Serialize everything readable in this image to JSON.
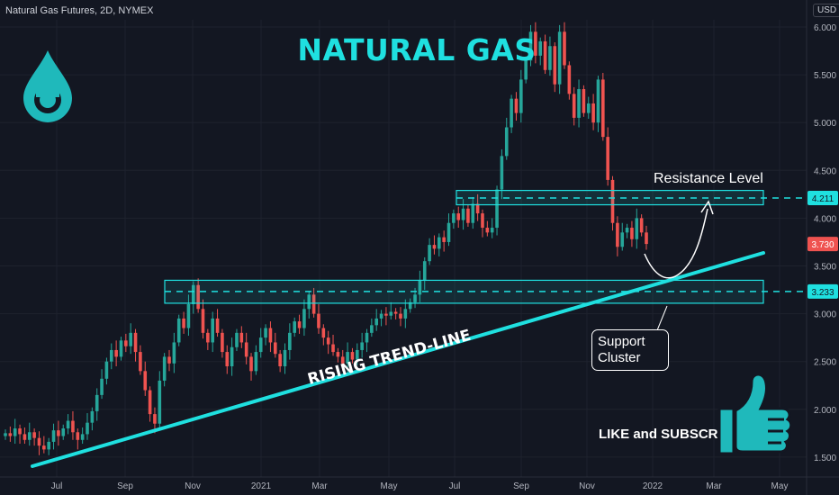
{
  "header": {
    "ticker_title": "Natural Gas Futures, 2D, NYMEX",
    "currency": "USD"
  },
  "annotations": {
    "headline": "NATURAL GAS",
    "resistance": "Resistance Level",
    "support_line1": "Support",
    "support_line2": "Cluster",
    "trendline": "RISING TREND-LINE",
    "cta": "LIKE and SUBSCRIBE"
  },
  "icons": {
    "left": "water-drop-icon",
    "right": "thumbs-up-icon"
  },
  "colors": {
    "accent": "#1fe0e0",
    "up": "#26a69a",
    "down": "#ef5350",
    "background": "#131722"
  },
  "chart_data": {
    "type": "candlestick",
    "y_ticks": [
      "6.000",
      "5.500",
      "5.000",
      "4.500",
      "4.000",
      "3.500",
      "3.000",
      "2.500",
      "2.000",
      "1.500"
    ],
    "y_range": [
      1.35,
      6.2
    ],
    "x_ticks": [
      "Jul",
      "Sep",
      "Nov",
      "2021",
      "Mar",
      "May",
      "Jul",
      "Sep",
      "Nov",
      "2022",
      "Mar",
      "May"
    ],
    "price_labels": [
      {
        "text": "4.211",
        "value": 4.211,
        "color": "#1fe0e0"
      },
      {
        "text": "3.730",
        "value": 3.73,
        "color": "#ef5350"
      },
      {
        "text": "3.233",
        "value": 3.233,
        "color": "#1fe0e0"
      }
    ],
    "resistance_zone": [
      4.14,
      4.29
    ],
    "resistance_line": 4.211,
    "support_zone": [
      3.11,
      3.35
    ],
    "support_line": 3.233,
    "trendline": {
      "from": [
        "Jun 2020",
        1.45
      ],
      "to": [
        "May 2022",
        3.65
      ]
    },
    "closes": [
      1.75,
      1.72,
      1.8,
      1.74,
      1.68,
      1.76,
      1.7,
      1.62,
      1.58,
      1.66,
      1.78,
      1.72,
      1.8,
      1.88,
      1.76,
      1.68,
      1.74,
      1.86,
      1.98,
      2.15,
      2.32,
      2.5,
      2.62,
      2.55,
      2.72,
      2.66,
      2.8,
      2.6,
      2.4,
      2.2,
      1.95,
      1.85,
      2.3,
      2.55,
      2.48,
      2.7,
      2.95,
      2.85,
      3.1,
      3.3,
      3.05,
      2.8,
      2.7,
      2.95,
      2.8,
      2.6,
      2.45,
      2.65,
      2.8,
      2.7,
      2.55,
      2.4,
      2.6,
      2.75,
      2.85,
      2.7,
      2.58,
      2.45,
      2.62,
      2.8,
      2.92,
      2.85,
      3.05,
      3.2,
      3.0,
      2.85,
      2.75,
      2.68,
      2.6,
      2.55,
      2.48,
      2.6,
      2.52,
      2.62,
      2.7,
      2.8,
      2.88,
      2.95,
      3.0,
      2.98,
      3.02,
      3.0,
      2.95,
      3.05,
      3.12,
      3.2,
      3.35,
      3.55,
      3.72,
      3.68,
      3.8,
      3.75,
      3.95,
      4.05,
      3.98,
      4.1,
      3.95,
      4.15,
      4.05,
      3.9,
      3.85,
      3.9,
      4.3,
      4.65,
      4.95,
      5.25,
      5.1,
      5.45,
      5.65,
      5.95,
      5.7,
      5.85,
      5.55,
      5.8,
      5.4,
      5.95,
      5.6,
      5.3,
      5.05,
      5.35,
      5.1,
      5.2,
      5.0,
      5.45,
      4.85,
      4.4,
      3.95,
      3.7,
      3.85,
      3.9,
      3.78,
      4.0,
      3.85,
      3.73
    ]
  }
}
